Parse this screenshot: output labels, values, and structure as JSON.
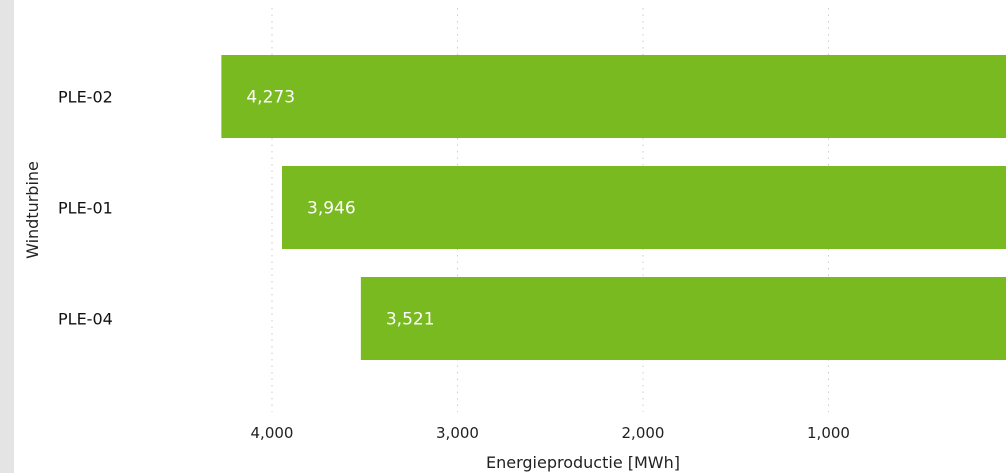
{
  "chart_data": {
    "type": "bar",
    "orientation": "horizontal",
    "x_reversed": true,
    "categories": [
      "PLE-02",
      "PLE-01",
      "PLE-04"
    ],
    "values": [
      4273,
      3946,
      3521
    ],
    "value_labels": [
      "4,273",
      "3,946",
      "3,521"
    ],
    "xticks": [
      4000,
      3000,
      2000,
      1000
    ],
    "xtick_labels": [
      "4,000",
      "3,000",
      "2,000",
      "1,000"
    ],
    "xlim": [
      0,
      4500
    ],
    "xlabel": "Energieproductie [MWh]",
    "ylabel": "Windturbine",
    "grid": "vertical-dotted",
    "bar_color": "#7aba21",
    "grid_color": "#cccccc"
  }
}
